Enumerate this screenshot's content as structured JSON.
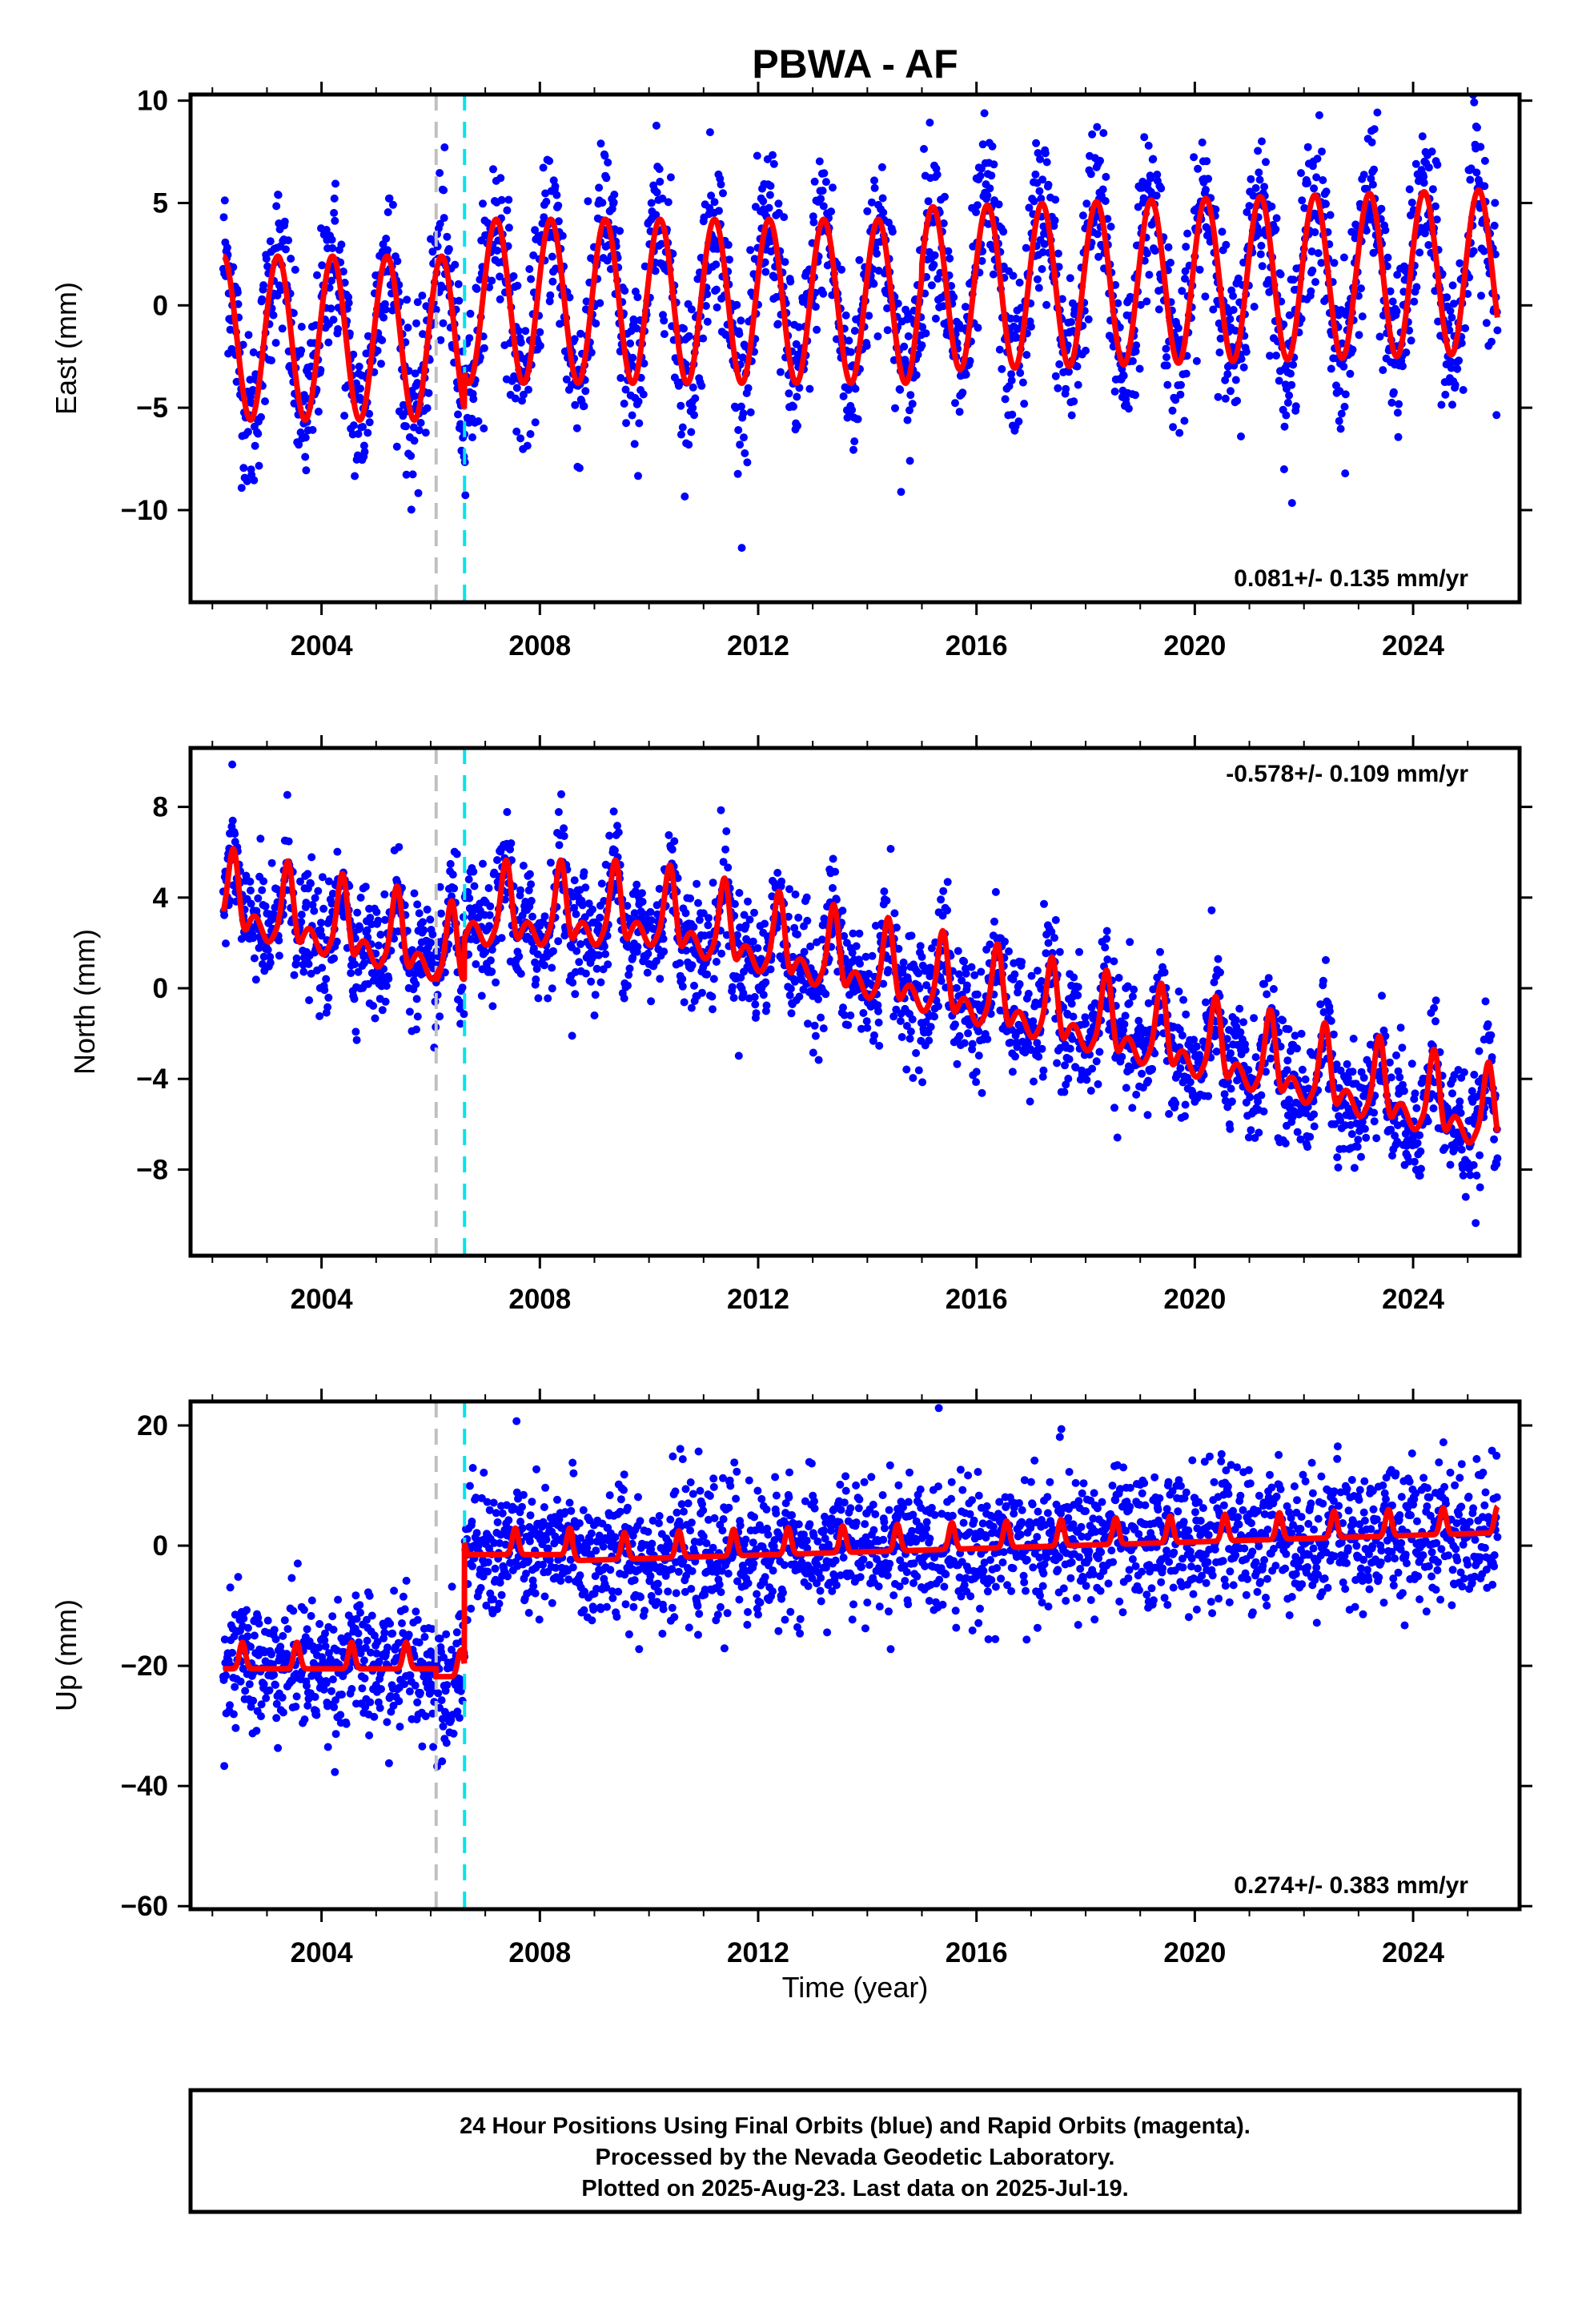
{
  "chart_data": [
    {
      "type": "scatter",
      "panel": "east",
      "title": "PBWA - AF",
      "ylabel": "East (mm)",
      "xlabel": "",
      "xlim": [
        2001.6,
        2025.95
      ],
      "ylim": [
        -14.5,
        10.3
      ],
      "x_ticks": [
        2004,
        2008,
        2012,
        2016,
        2020,
        2024
      ],
      "y_ticks": [
        10,
        5,
        0,
        -5,
        -10
      ],
      "y_tick_labels": [
        "10",
        "5",
        "0",
        "−5",
        "−10"
      ],
      "rate_label": "0.081+/- 0.135 mm/yr",
      "vlines": [
        {
          "x": 2006.1,
          "color": "#c0c0c0"
        },
        {
          "x": 2006.62,
          "color": "#00e5ee"
        }
      ],
      "points_color": "#0000ff",
      "model_color": "#ff0000",
      "model": {
        "amplitude": 4.0,
        "phase": 2001.95,
        "noise": 2.0,
        "segments": [
          {
            "start": 2002.2,
            "end": 2006.1,
            "offset": -1.6,
            "trend": 0
          },
          {
            "start": 2006.1,
            "end": 2006.62,
            "offset": -1.6,
            "trend": 0
          },
          {
            "start": 2006.62,
            "end": 2015.0,
            "offset": 0.2,
            "trend": 0
          },
          {
            "start": 2015.0,
            "end": 2025.55,
            "offset": 0.8,
            "trend": 0.081
          }
        ]
      }
    },
    {
      "type": "scatter",
      "panel": "north",
      "title": "",
      "ylabel": "North (mm)",
      "xlabel": "",
      "xlim": [
        2001.6,
        2025.95
      ],
      "ylim": [
        -11.8,
        10.6
      ],
      "x_ticks": [
        2004,
        2008,
        2012,
        2016,
        2020,
        2024
      ],
      "y_ticks": [
        8,
        4,
        0,
        -4,
        -8
      ],
      "y_tick_labels": [
        "8",
        "4",
        "0",
        "−4",
        "−8"
      ],
      "rate_label": "-0.578+/- 0.109 mm/yr",
      "vlines": [
        {
          "x": 2006.1,
          "color": "#c0c0c0"
        },
        {
          "x": 2006.62,
          "color": "#00e5ee"
        }
      ],
      "points_color": "#0000ff",
      "model_color": "#ff0000",
      "model": {
        "amplitude": 2.0,
        "phase": 2002.15,
        "noise": 1.3,
        "segments": [
          {
            "start": 2002.2,
            "end": 2006.1,
            "base": 3.0,
            "trend": -0.55
          },
          {
            "start": 2006.1,
            "end": 2006.62,
            "base": 0.6,
            "trend": 0
          },
          {
            "start": 2006.62,
            "end": 2010.0,
            "base": 2.4,
            "trend": 0
          },
          {
            "start": 2010.0,
            "end": 2025.55,
            "base": 2.4,
            "trend": -0.58
          }
        ]
      }
    },
    {
      "type": "scatter",
      "panel": "up",
      "title": "",
      "ylabel": "Up (mm)",
      "xlabel": "Time (year)",
      "xlim": [
        2001.6,
        2025.95
      ],
      "ylim": [
        -60.5,
        24.0
      ],
      "x_ticks": [
        2004,
        2008,
        2012,
        2016,
        2020,
        2024
      ],
      "y_ticks": [
        20,
        0,
        -20,
        -40,
        -60
      ],
      "y_tick_labels": [
        "20",
        "0",
        "−20",
        "−40",
        "−60"
      ],
      "rate_label": "0.274+/- 0.383 mm/yr",
      "vlines": [
        {
          "x": 2006.1,
          "color": "#c0c0c0"
        },
        {
          "x": 2006.62,
          "color": "#00e5ee"
        }
      ],
      "points_color": "#0000ff",
      "model_color": "#ff0000",
      "model": {
        "amplitude": 4.0,
        "phase": 2002.3,
        "noise": 5.5,
        "segments": [
          {
            "start": 2002.2,
            "end": 2006.1,
            "offset": -20.5,
            "trend": 0
          },
          {
            "start": 2006.1,
            "end": 2006.62,
            "offset": -21.8,
            "trend": 0
          },
          {
            "start": 2006.62,
            "end": 2008.6,
            "offset": -1.5,
            "trend": 0
          },
          {
            "start": 2008.6,
            "end": 2025.55,
            "offset": -2.5,
            "trend": 0.274
          }
        ]
      }
    }
  ],
  "footer": {
    "line1": "24 Hour Positions Using Final Orbits (blue) and Rapid Orbits (magenta).",
    "line2": "Processed by the Nevada Geodetic Laboratory.",
    "line3": "Plotted on 2025-Aug-23. Last data on 2025-Jul-19."
  }
}
